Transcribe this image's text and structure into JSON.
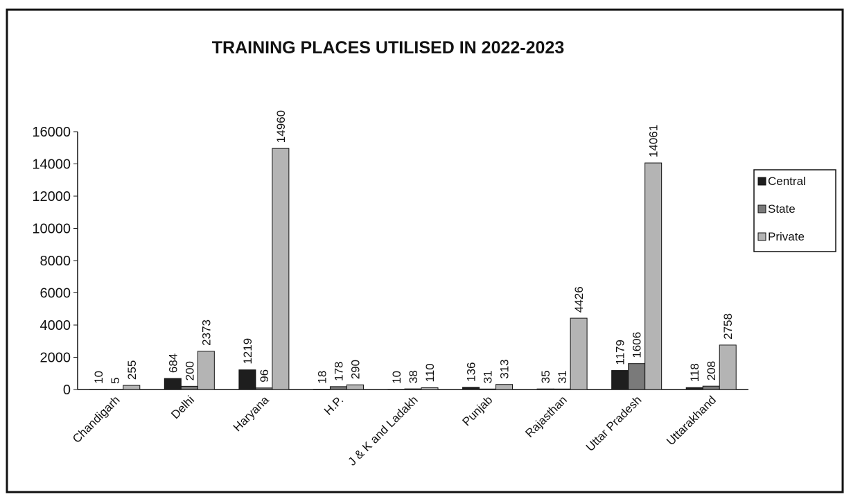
{
  "chart_data": {
    "type": "bar",
    "title": "TRAINING PLACES UTILISED IN 2022-2023",
    "categories": [
      "Chandigarh",
      "Delhi",
      "Haryana",
      "H.P.",
      "J & K and Ladakh",
      "Punjab",
      "Rajasthan",
      "Uttar Pradesh",
      "Uttarakhand"
    ],
    "series": [
      {
        "name": "Central",
        "color": "#1e1e1e",
        "values": [
          10,
          684,
          1219,
          18,
          10,
          136,
          35,
          1179,
          118
        ]
      },
      {
        "name": "State",
        "color": "#7a7a7a",
        "values": [
          5,
          200,
          96,
          178,
          38,
          31,
          31,
          1606,
          208
        ]
      },
      {
        "name": "Private",
        "color": "#b4b4b4",
        "values": [
          255,
          2373,
          14960,
          290,
          110,
          313,
          4426,
          14061,
          2758
        ]
      }
    ],
    "ylim": [
      0,
      16000
    ],
    "yticks": [
      0,
      2000,
      4000,
      6000,
      8000,
      10000,
      12000,
      14000,
      16000
    ],
    "legend": "right",
    "grid": false
  }
}
